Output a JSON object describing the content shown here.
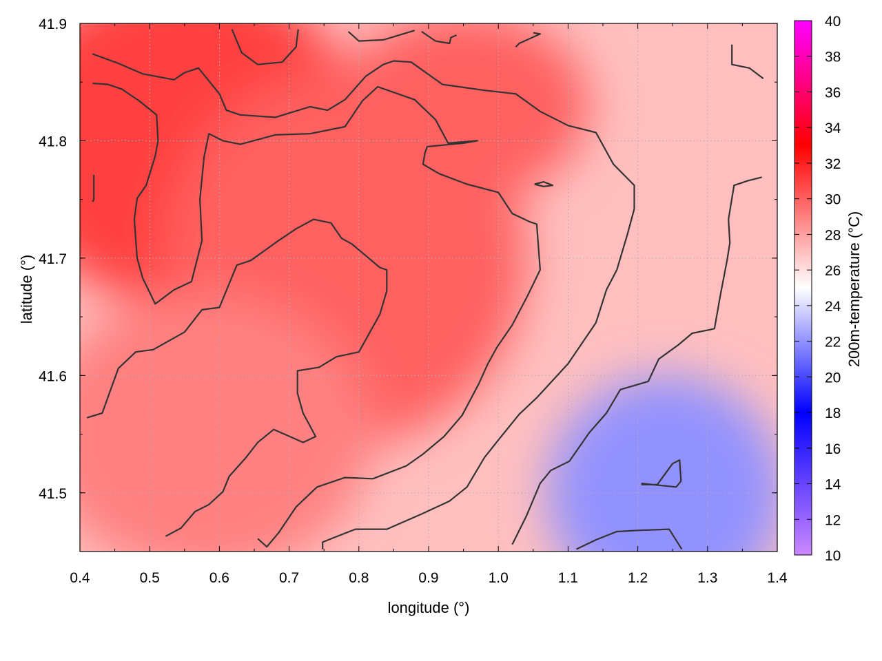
{
  "chart_data": {
    "type": "heatmap",
    "title": "",
    "xlabel": "longitude (°)",
    "ylabel": "latitude (°)",
    "colorbar_label": "200m-temperature (°C)",
    "xlim": [
      0.4,
      1.4
    ],
    "ylim": [
      41.45,
      41.9
    ],
    "x_ticks": [
      "0.4",
      "0.5",
      "0.6",
      "0.7",
      "0.8",
      "0.9",
      "1.0",
      "1.1",
      "1.2",
      "1.3",
      "1.4"
    ],
    "y_ticks": [
      "41.5",
      "41.6",
      "41.7",
      "41.8",
      "41.9"
    ],
    "colorbar_range": [
      10,
      40
    ],
    "colorbar_ticks": [
      "10",
      "12",
      "14",
      "16",
      "18",
      "20",
      "22",
      "24",
      "26",
      "28",
      "30",
      "32",
      "34",
      "36",
      "38",
      "40"
    ],
    "colormap": [
      {
        "value": 10,
        "color": "#cc88ff"
      },
      {
        "value": 18,
        "color": "#0000ff"
      },
      {
        "value": 25,
        "color": "#ffffff"
      },
      {
        "value": 33,
        "color": "#ff0000"
      },
      {
        "value": 40,
        "color": "#ff00ff"
      }
    ],
    "grid": true,
    "contour_color": "#333333",
    "temperature_regions": [
      {
        "region": "north-west",
        "approx_temp": 31
      },
      {
        "region": "centre",
        "approx_temp": 30
      },
      {
        "region": "south-west",
        "approx_temp": 29
      },
      {
        "region": "east",
        "approx_temp": 27
      },
      {
        "region": "south-east",
        "approx_temp": 22
      }
    ],
    "contours": [
      {
        "name": "contour-1",
        "points": [
          [
            0.418,
            41.874
          ],
          [
            0.455,
            41.866
          ],
          [
            0.49,
            41.857
          ],
          [
            0.535,
            41.852
          ],
          [
            0.55,
            41.858
          ],
          [
            0.57,
            41.862
          ],
          [
            0.6,
            41.84
          ],
          [
            0.61,
            41.826
          ],
          [
            0.63,
            41.822
          ],
          [
            0.68,
            41.82
          ],
          [
            0.73,
            41.829
          ],
          [
            0.755,
            41.826
          ],
          [
            0.78,
            41.835
          ],
          [
            0.81,
            41.855
          ],
          [
            0.835,
            41.865
          ],
          [
            0.85,
            41.868
          ],
          [
            0.875,
            41.867
          ],
          [
            0.92,
            41.848
          ],
          [
            0.98,
            41.843
          ],
          [
            1.025,
            41.84
          ],
          [
            1.06,
            41.825
          ],
          [
            1.1,
            41.813
          ],
          [
            1.14,
            41.807
          ],
          [
            1.165,
            41.78
          ],
          [
            1.195,
            41.762
          ],
          [
            1.195,
            41.742
          ],
          [
            1.185,
            41.72
          ],
          [
            1.17,
            41.69
          ],
          [
            1.155,
            41.673
          ],
          [
            1.14,
            41.645
          ],
          [
            1.1,
            41.61
          ],
          [
            1.055,
            41.581
          ],
          [
            1.03,
            41.567
          ],
          [
            1.0,
            41.545
          ],
          [
            0.98,
            41.53
          ],
          [
            0.955,
            41.505
          ],
          [
            0.93,
            41.493
          ],
          [
            0.89,
            41.482
          ],
          [
            0.84,
            41.469
          ],
          [
            0.795,
            41.469
          ],
          [
            0.765,
            41.462
          ],
          [
            0.748,
            41.458
          ],
          [
            0.748,
            41.452
          ]
        ]
      },
      {
        "name": "contour-2",
        "points": [
          [
            0.418,
            41.849
          ],
          [
            0.44,
            41.848
          ],
          [
            0.46,
            41.844
          ],
          [
            0.485,
            41.834
          ],
          [
            0.51,
            41.822
          ],
          [
            0.512,
            41.8
          ],
          [
            0.508,
            41.787
          ],
          [
            0.495,
            41.762
          ],
          [
            0.482,
            41.751
          ],
          [
            0.478,
            41.733
          ],
          [
            0.482,
            41.7
          ],
          [
            0.49,
            41.683
          ],
          [
            0.508,
            41.661
          ],
          [
            0.535,
            41.673
          ],
          [
            0.56,
            41.68
          ],
          [
            0.575,
            41.715
          ],
          [
            0.572,
            41.75
          ],
          [
            0.578,
            41.786
          ],
          [
            0.585,
            41.806
          ],
          [
            0.605,
            41.8
          ],
          [
            0.63,
            41.797
          ],
          [
            0.68,
            41.805
          ],
          [
            0.73,
            41.806
          ],
          [
            0.78,
            41.812
          ],
          [
            0.805,
            41.834
          ],
          [
            0.827,
            41.846
          ],
          [
            0.88,
            41.835
          ],
          [
            0.91,
            41.818
          ],
          [
            0.928,
            41.798
          ],
          [
            0.97,
            41.8
          ],
          [
            0.95,
            41.798
          ],
          [
            0.898,
            41.795
          ],
          [
            0.895,
            41.79
          ],
          [
            0.892,
            41.78
          ],
          [
            0.915,
            41.772
          ],
          [
            0.955,
            41.763
          ],
          [
            1.0,
            41.756
          ],
          [
            1.02,
            41.738
          ],
          [
            1.045,
            41.731
          ],
          [
            1.055,
            41.729
          ],
          [
            1.06,
            41.69
          ],
          [
            1.042,
            41.668
          ],
          [
            1.02,
            41.643
          ],
          [
            0.998,
            41.624
          ],
          [
            0.985,
            41.61
          ],
          [
            0.972,
            41.593
          ],
          [
            0.948,
            41.566
          ],
          [
            0.922,
            41.548
          ],
          [
            0.892,
            41.533
          ],
          [
            0.868,
            41.523
          ],
          [
            0.82,
            41.512
          ],
          [
            0.78,
            41.513
          ],
          [
            0.74,
            41.505
          ],
          [
            0.71,
            41.488
          ],
          [
            0.685,
            41.466
          ],
          [
            0.668,
            41.454
          ],
          [
            0.655,
            41.461
          ]
        ]
      },
      {
        "name": "contour-3",
        "points": [
          [
            0.41,
            41.564
          ],
          [
            0.432,
            41.568
          ],
          [
            0.455,
            41.606
          ],
          [
            0.48,
            41.62
          ],
          [
            0.505,
            41.622
          ],
          [
            0.55,
            41.637
          ],
          [
            0.575,
            41.656
          ],
          [
            0.6,
            41.658
          ],
          [
            0.625,
            41.694
          ],
          [
            0.645,
            41.698
          ],
          [
            0.685,
            41.715
          ],
          [
            0.71,
            41.725
          ],
          [
            0.735,
            41.733
          ],
          [
            0.76,
            41.73
          ],
          [
            0.775,
            41.717
          ],
          [
            0.79,
            41.712
          ],
          [
            0.83,
            41.692
          ],
          [
            0.84,
            41.69
          ],
          [
            0.84,
            41.672
          ],
          [
            0.83,
            41.652
          ],
          [
            0.8,
            41.62
          ],
          [
            0.768,
            41.616
          ],
          [
            0.743,
            41.607
          ],
          [
            0.712,
            41.604
          ],
          [
            0.712,
            41.585
          ],
          [
            0.72,
            41.568
          ],
          [
            0.738,
            41.548
          ],
          [
            0.72,
            41.543
          ],
          [
            0.678,
            41.554
          ],
          [
            0.655,
            41.543
          ],
          [
            0.638,
            41.53
          ],
          [
            0.614,
            41.514
          ],
          [
            0.605,
            41.501
          ],
          [
            0.585,
            41.49
          ],
          [
            0.565,
            41.484
          ],
          [
            0.545,
            41.47
          ],
          [
            0.523,
            41.463
          ]
        ]
      },
      {
        "name": "contour-4",
        "points": [
          [
            1.02,
            41.456
          ],
          [
            1.04,
            41.48
          ],
          [
            1.06,
            41.508
          ],
          [
            1.075,
            41.519
          ],
          [
            1.102,
            41.527
          ],
          [
            1.13,
            41.551
          ],
          [
            1.155,
            41.568
          ],
          [
            1.175,
            41.588
          ],
          [
            1.215,
            41.595
          ],
          [
            1.23,
            41.614
          ],
          [
            1.258,
            41.626
          ],
          [
            1.278,
            41.636
          ],
          [
            1.303,
            41.639
          ],
          [
            1.31,
            41.64
          ],
          [
            1.318,
            41.667
          ],
          [
            1.328,
            41.698
          ],
          [
            1.332,
            41.713
          ],
          [
            1.33,
            41.733
          ],
          [
            1.338,
            41.762
          ],
          [
            1.358,
            41.766
          ],
          [
            1.378,
            41.769
          ]
        ]
      },
      {
        "name": "contour-5",
        "points": [
          [
            1.112,
            41.452
          ],
          [
            1.14,
            41.46
          ],
          [
            1.17,
            41.467
          ],
          [
            1.2,
            41.468
          ],
          [
            1.245,
            41.469
          ],
          [
            1.263,
            41.452
          ]
        ]
      },
      {
        "name": "contour-6",
        "points": [
          [
            1.205,
            41.507
          ],
          [
            1.228,
            41.507
          ],
          [
            1.25,
            41.525
          ],
          [
            1.26,
            41.528
          ],
          [
            1.262,
            41.51
          ],
          [
            1.255,
            41.505
          ],
          [
            1.205,
            41.508
          ]
        ]
      },
      {
        "name": "contour-7",
        "points": [
          [
            1.052,
            41.763
          ],
          [
            1.065,
            41.765
          ],
          [
            1.078,
            41.762
          ],
          [
            1.065,
            41.761
          ],
          [
            1.052,
            41.763
          ]
        ]
      },
      {
        "name": "contour-8",
        "points": [
          [
            0.618,
            41.895
          ],
          [
            0.632,
            41.875
          ],
          [
            0.655,
            41.865
          ],
          [
            0.69,
            41.867
          ],
          [
            0.71,
            41.88
          ],
          [
            0.713,
            41.895
          ]
        ]
      },
      {
        "name": "contour-9",
        "points": [
          [
            0.785,
            41.893
          ],
          [
            0.8,
            41.885
          ],
          [
            0.835,
            41.886
          ],
          [
            0.88,
            41.894
          ]
        ]
      },
      {
        "name": "contour-10",
        "points": [
          [
            0.89,
            41.893
          ],
          [
            0.91,
            41.885
          ],
          [
            0.93,
            41.883
          ],
          [
            0.932,
            41.888
          ],
          [
            0.94,
            41.89
          ]
        ]
      },
      {
        "name": "contour-11",
        "points": [
          [
            1.025,
            41.88
          ],
          [
            1.03,
            41.883
          ],
          [
            1.06,
            41.891
          ],
          [
            1.05,
            41.892
          ]
        ]
      },
      {
        "name": "contour-12",
        "points": [
          [
            1.335,
            41.882
          ],
          [
            1.335,
            41.865
          ],
          [
            1.36,
            41.862
          ],
          [
            1.38,
            41.853
          ]
        ]
      },
      {
        "name": "contour-13",
        "points": [
          [
            0.42,
            41.771
          ],
          [
            0.42,
            41.75
          ],
          [
            0.418,
            41.748
          ]
        ]
      }
    ]
  }
}
